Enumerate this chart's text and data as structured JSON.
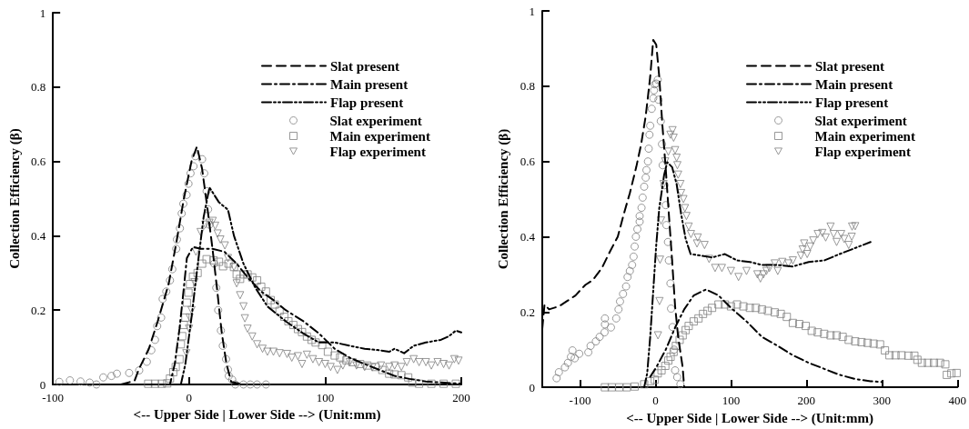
{
  "chart_data": [
    {
      "type": "line",
      "xlabel": "<-- Upper Side | Lower Side --> (Unit:mm)",
      "ylabel": "Collection Efficiency (β)",
      "xlim": [
        -100,
        200
      ],
      "xticks": [
        -100,
        0,
        100,
        200
      ],
      "ylim": [
        0,
        1
      ],
      "yticks": [
        0,
        0.2,
        0.4,
        0.6,
        0.8,
        1
      ],
      "grid": false,
      "legend": "top right",
      "series": [
        {
          "name": "Slat present",
          "type": "line",
          "color": "#000000",
          "marker": "none",
          "line_style": "dashed",
          "x": [
            -50,
            -40,
            -37,
            -29.5,
            -23,
            -15,
            -9.4,
            -3.8,
            1.8,
            5.8,
            9.6,
            14,
            17.4,
            20.8,
            24,
            27.5,
            31,
            40
          ],
          "values": [
            0,
            0.01,
            0.04,
            0.096,
            0.17,
            0.27,
            0.38,
            0.5,
            0.6,
            0.64,
            0.58,
            0.46,
            0.36,
            0.25,
            0.14,
            0.055,
            0.007,
            0
          ]
        },
        {
          "name": "Main present",
          "type": "line",
          "color": "#000000",
          "marker": "none",
          "line_style": "dashdot",
          "x": [
            -30,
            -14,
            -10.5,
            -7,
            -3.8,
            -1.6,
            2.9,
            8.5,
            17,
            26,
            35,
            44,
            53,
            62,
            71,
            84,
            95.5,
            107,
            118,
            129,
            140,
            151,
            162,
            174,
            200
          ],
          "values": [
            0,
            0,
            0.055,
            0.15,
            0.26,
            0.34,
            0.37,
            0.365,
            0.365,
            0.357,
            0.325,
            0.284,
            0.25,
            0.227,
            0.2,
            0.17,
            0.137,
            0.096,
            0.072,
            0.055,
            0.039,
            0.023,
            0.015,
            0.008,
            0.002
          ]
        },
        {
          "name": "Flap present",
          "type": "line",
          "color": "#000000",
          "marker": "none",
          "line_style": "dashdotdot",
          "x": [
            -6,
            -2.7,
            1.8,
            6.3,
            10.7,
            15,
            22,
            28.6,
            33,
            40,
            48.7,
            57.6,
            71,
            84,
            95.5,
            107,
            118,
            129,
            140,
            147,
            151,
            158,
            165,
            174,
            185,
            191,
            196,
            200
          ],
          "values": [
            0,
            0.055,
            0.18,
            0.32,
            0.45,
            0.53,
            0.49,
            0.47,
            0.4,
            0.325,
            0.26,
            0.21,
            0.17,
            0.137,
            0.113,
            0.113,
            0.104,
            0.096,
            0.092,
            0.088,
            0.096,
            0.084,
            0.104,
            0.113,
            0.12,
            0.13,
            0.145,
            0.14
          ]
        },
        {
          "name": "Slat experiment",
          "type": "scatter",
          "color": "#808080",
          "marker": "circle",
          "x": [
            -95.3,
            -87.5,
            -79.7,
            -73,
            -68,
            -63,
            -57,
            -53,
            -44,
            -36.6,
            -31,
            -27.7,
            -25,
            -23.4,
            -20.5,
            -19.4,
            -16.7,
            -14,
            -12.3,
            -9.4,
            -8.9,
            -6.7,
            -5.4,
            -4.2,
            -1.8,
            -0.4,
            1.1,
            3.3,
            4.7,
            9.6,
            11.2,
            12.9,
            14,
            15,
            18.5,
            20,
            21.4,
            23.4,
            24.8,
            27.2,
            28.6,
            29.2,
            31.7,
            34,
            40,
            45,
            50,
            56.5
          ],
          "values": [
            0.007,
            0.011,
            0.008,
            0.005,
            0,
            0.019,
            0.023,
            0.029,
            0.031,
            0.038,
            0.061,
            0.092,
            0.12,
            0.157,
            0.18,
            0.23,
            0.25,
            0.28,
            0.31,
            0.365,
            0.39,
            0.42,
            0.46,
            0.486,
            0.51,
            0.54,
            0.568,
            0.587,
            0.614,
            0.606,
            0.568,
            0.52,
            0.471,
            0.43,
            0.325,
            0.26,
            0.2,
            0.145,
            0.104,
            0.068,
            0.04,
            0.023,
            0.013,
            0,
            0,
            0,
            0,
            0
          ]
        },
        {
          "name": "Main experiment",
          "type": "scatter",
          "color": "#808080",
          "marker": "square",
          "x": [
            -30,
            -25,
            -20,
            -16,
            -14,
            -11.6,
            -9.8,
            -7,
            -6,
            -5,
            -3.8,
            -2.7,
            -1.6,
            -0.4,
            0.7,
            2.9,
            6.3,
            9.6,
            12.9,
            18,
            22,
            25,
            29,
            33,
            35,
            37.5,
            40,
            43,
            46.4,
            50,
            53,
            56.5,
            60,
            63,
            66.5,
            70,
            73,
            76.6,
            80,
            83,
            86.6,
            90,
            93,
            97.8,
            102,
            107,
            111,
            115.6,
            120,
            125.7,
            131,
            137,
            142,
            147,
            151,
            156,
            161,
            164,
            169,
            178,
            187,
            196
          ],
          "values": [
            0.002,
            0.002,
            0.002,
            0.003,
            0.016,
            0.033,
            0.047,
            0.068,
            0.108,
            0.13,
            0.16,
            0.18,
            0.22,
            0.247,
            0.27,
            0.29,
            0.3,
            0.325,
            0.337,
            0.334,
            0.33,
            0.318,
            0.325,
            0.316,
            0.296,
            0.284,
            0.296,
            0.296,
            0.288,
            0.28,
            0.263,
            0.25,
            0.227,
            0.215,
            0.198,
            0.182,
            0.17,
            0.16,
            0.149,
            0.141,
            0.129,
            0.12,
            0.113,
            0.106,
            0.088,
            0.078,
            0.073,
            0.065,
            0.06,
            0.055,
            0.051,
            0.047,
            0.039,
            0.029,
            0.027,
            0.025,
            0.019,
            0.005,
            0.002,
            0.002,
            0.002,
            0.002
          ]
        },
        {
          "name": "Flap experiment",
          "type": "scatter",
          "color": "#808080",
          "marker": "triangle",
          "x": [
            -2,
            0,
            0.4,
            1.8,
            4,
            5.1,
            8.5,
            12,
            15,
            17.4,
            19.2,
            21,
            23,
            26.3,
            28.6,
            33,
            35,
            37.5,
            40,
            41,
            43,
            46.4,
            50,
            54,
            57.6,
            62,
            66.5,
            72,
            75.5,
            80,
            83,
            86.6,
            91,
            95.5,
            100,
            104,
            109,
            113,
            118,
            123,
            129,
            134.6,
            141,
            147,
            151,
            156,
            160,
            165,
            169,
            174,
            178,
            182.6,
            187,
            191,
            194.9,
            198
          ],
          "values": [
            0.084,
            0.15,
            0.18,
            0.2,
            0.275,
            0.357,
            0.41,
            0.43,
            0.435,
            0.44,
            0.427,
            0.406,
            0.39,
            0.374,
            0.34,
            0.316,
            0.272,
            0.24,
            0.21,
            0.178,
            0.15,
            0.129,
            0.108,
            0.096,
            0.088,
            0.088,
            0.084,
            0.082,
            0.072,
            0.076,
            0.055,
            0.08,
            0.068,
            0.06,
            0.055,
            0.047,
            0.039,
            0.051,
            0.06,
            0.051,
            0.047,
            0.046,
            0.051,
            0.047,
            0.051,
            0.047,
            0.06,
            0.068,
            0.06,
            0.06,
            0.051,
            0.06,
            0.055,
            0.051,
            0.068,
            0.064
          ]
        }
      ]
    },
    {
      "type": "line",
      "xlabel": "<-- Upper Side | Lower Side --> (Unit:mm)",
      "ylabel": "Collection Efficiency (β)",
      "xlim": [
        -150,
        400
      ],
      "xticks": [
        -100,
        0,
        100,
        200,
        300,
        400
      ],
      "ylim": [
        0,
        1
      ],
      "yticks": [
        0,
        0.2,
        0.4,
        0.6,
        0.8,
        1
      ],
      "grid": false,
      "legend": "top right",
      "series": [
        {
          "name": "Slat present",
          "type": "line",
          "color": "#000000",
          "marker": "none",
          "line_style": "dashed",
          "x": [
            -150,
            -147,
            -141,
            -128,
            -118,
            -106,
            -93,
            -83,
            -71,
            -60,
            -50,
            -42,
            -34,
            -25.5,
            -19,
            -13,
            -7,
            -3,
            1,
            5,
            9,
            13.6,
            17.7,
            22,
            26,
            30,
            36,
            38
          ],
          "values": [
            0.155,
            0.22,
            0.207,
            0.215,
            0.228,
            0.244,
            0.272,
            0.285,
            0.317,
            0.362,
            0.4,
            0.46,
            0.516,
            0.585,
            0.646,
            0.72,
            0.825,
            0.923,
            0.91,
            0.825,
            0.7,
            0.58,
            0.46,
            0.337,
            0.215,
            0.134,
            0.053,
            0
          ]
        },
        {
          "name": "Main present",
          "type": "line",
          "color": "#000000",
          "marker": "none",
          "line_style": "dashdot",
          "x": [
            -7,
            1,
            13.6,
            26,
            38,
            50.6,
            67,
            83.5,
            100,
            120.6,
            141,
            162,
            182,
            203,
            223.5,
            244,
            264.6,
            285,
            300
          ],
          "values": [
            0.028,
            0.053,
            0.1,
            0.159,
            0.207,
            0.244,
            0.26,
            0.244,
            0.211,
            0.175,
            0.134,
            0.11,
            0.085,
            0.065,
            0.049,
            0.033,
            0.022,
            0.016,
            0.014
          ]
        },
        {
          "name": "Flap present",
          "type": "line",
          "color": "#000000",
          "marker": "none",
          "line_style": "dashdotdot",
          "x": [
            -15,
            -11,
            -7,
            -3,
            1,
            5,
            11.5,
            15.6,
            22,
            28,
            34,
            40,
            46.5,
            59,
            75,
            92,
            108,
            125,
            141,
            162,
            182,
            203,
            223.5,
            244,
            264.6,
            285
          ],
          "values": [
            0,
            0.037,
            0.134,
            0.256,
            0.378,
            0.476,
            0.565,
            0.598,
            0.585,
            0.54,
            0.46,
            0.394,
            0.354,
            0.35,
            0.345,
            0.354,
            0.337,
            0.333,
            0.325,
            0.325,
            0.321,
            0.333,
            0.337,
            0.354,
            0.37,
            0.386
          ]
        },
        {
          "name": "Slat experiment",
          "type": "scatter",
          "color": "#808080",
          "marker": "circle",
          "x": [
            -131,
            -128,
            -120,
            -116,
            -112,
            -110,
            -107,
            -101,
            -89,
            -86,
            -79,
            -74,
            -67.5,
            -67,
            -67,
            -59,
            -52,
            -49,
            -47,
            -43,
            -39,
            -37,
            -34,
            -31,
            -29,
            -27.6,
            -26,
            -24,
            -21,
            -21,
            -18.5,
            -17,
            -15,
            -13,
            -12,
            -10,
            -9,
            -8,
            -7,
            -5,
            -3,
            -2,
            -1,
            1,
            3,
            4,
            7,
            8.6,
            9.5,
            12,
            13.6,
            14.4,
            16.5,
            17.7,
            19.8,
            20.6,
            22.6,
            24.7,
            26,
            28.8,
            33
          ],
          "values": [
            0.024,
            0.04,
            0.053,
            0.065,
            0.081,
            0.098,
            0.077,
            0.089,
            0.093,
            0.11,
            0.122,
            0.134,
            0.146,
            0.167,
            0.183,
            0.159,
            0.183,
            0.207,
            0.228,
            0.248,
            0.268,
            0.293,
            0.309,
            0.325,
            0.347,
            0.374,
            0.4,
            0.42,
            0.44,
            0.455,
            0.477,
            0.504,
            0.533,
            0.557,
            0.577,
            0.6,
            0.634,
            0.671,
            0.695,
            0.74,
            0.768,
            0.789,
            0.805,
            0.807,
            0.817,
            0.764,
            0.707,
            0.646,
            0.59,
            0.537,
            0.484,
            0.431,
            0.386,
            0.337,
            0.276,
            0.209,
            0.16,
            0.1,
            0.045,
            0.027,
            0.008
          ]
        },
        {
          "name": "Main experiment",
          "type": "scatter",
          "color": "#808080",
          "marker": "square",
          "x": [
            -67,
            -58,
            -48,
            -38,
            -27.6,
            -15,
            -7,
            -1,
            3,
            8,
            13,
            17,
            20,
            24,
            27,
            32,
            36,
            40,
            44,
            50.6,
            57,
            63,
            69,
            75,
            83.5,
            92,
            100,
            108,
            116.5,
            125,
            133,
            141,
            149,
            158,
            166,
            174,
            182,
            190.5,
            199,
            207,
            215,
            223.5,
            232,
            240,
            248,
            256,
            264.6,
            273,
            281,
            289,
            297.5,
            304,
            310,
            318,
            326,
            335,
            343,
            347,
            353,
            361,
            369,
            377,
            384,
            386,
            392,
            399
          ],
          "values": [
            0,
            0,
            0,
            0,
            0.002,
            0.008,
            0.016,
            0.02,
            0.037,
            0.045,
            0.057,
            0.071,
            0.081,
            0.094,
            0.11,
            0.126,
            0.138,
            0.152,
            0.163,
            0.175,
            0.183,
            0.195,
            0.203,
            0.211,
            0.22,
            0.22,
            0.215,
            0.22,
            0.215,
            0.211,
            0.211,
            0.207,
            0.203,
            0.199,
            0.195,
            0.187,
            0.171,
            0.168,
            0.163,
            0.15,
            0.146,
            0.142,
            0.138,
            0.138,
            0.134,
            0.126,
            0.122,
            0.12,
            0.118,
            0.116,
            0.114,
            0.098,
            0.085,
            0.085,
            0.085,
            0.084,
            0.084,
            0.073,
            0.065,
            0.065,
            0.065,
            0.065,
            0.061,
            0.033,
            0.037,
            0.038
          ]
        },
        {
          "name": "Flap experiment",
          "type": "scatter",
          "color": "#808080",
          "marker": "triangle",
          "x": [
            3.3,
            5.3,
            6,
            7.4,
            10.7,
            12.8,
            17,
            19.8,
            22.6,
            24,
            26,
            28,
            29,
            30,
            33,
            34,
            37,
            39,
            41,
            44,
            47,
            55,
            56,
            65,
            71,
            79,
            88,
            100,
            110,
            120.6,
            135,
            139,
            143,
            147,
            151,
            158,
            162,
            168,
            176,
            182,
            192.6,
            195,
            197,
            201,
            205,
            209,
            215,
            221,
            225.5,
            232,
            236,
            240,
            246,
            250,
            256,
            260,
            260.5,
            264.6
          ],
          "values": [
            0.138,
            0.229,
            0.339,
            0.443,
            0.54,
            0.6,
            0.626,
            0.671,
            0.683,
            0.663,
            0.63,
            0.61,
            0.59,
            0.565,
            0.54,
            0.516,
            0.5,
            0.476,
            0.455,
            0.427,
            0.407,
            0.382,
            0.398,
            0.378,
            0.341,
            0.317,
            0.317,
            0.309,
            0.293,
            0.309,
            0.3,
            0.289,
            0.3,
            0.309,
            0.317,
            0.329,
            0.309,
            0.333,
            0.329,
            0.337,
            0.35,
            0.366,
            0.382,
            0.354,
            0.374,
            0.39,
            0.407,
            0.41,
            0.398,
            0.427,
            0.407,
            0.386,
            0.407,
            0.394,
            0.378,
            0.4,
            0.427,
            0.428
          ]
        }
      ]
    }
  ]
}
